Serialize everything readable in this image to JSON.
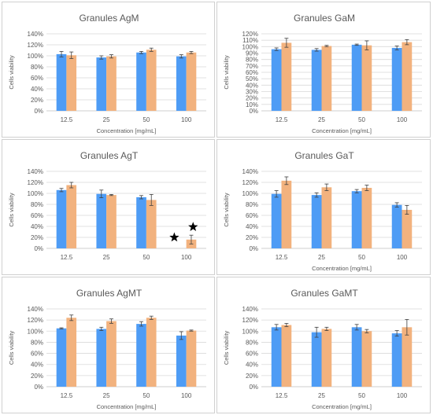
{
  "figure": {
    "colors": {
      "series_1": "#4e9cf5",
      "series_2": "#f2b27e",
      "marker": "#000000"
    }
  },
  "chart_data": [
    {
      "type": "bar",
      "title": "Granules AgM",
      "xlabel": "Concentration [mg/mL]",
      "ylabel": "Cells viability",
      "categories": [
        "12.5",
        "25",
        "50",
        "100"
      ],
      "ylim": [
        0,
        140
      ],
      "yticks": [
        "0%",
        "20%",
        "40%",
        "60%",
        "80%",
        "100%",
        "120%",
        "140%"
      ],
      "series": [
        {
          "values": [
            103,
            97,
            106,
            99
          ],
          "errors": [
            5,
            3,
            2,
            3
          ]
        },
        {
          "values": [
            101,
            99,
            111,
            106
          ],
          "errors": [
            6,
            3,
            3,
            2
          ]
        }
      ],
      "markers": []
    },
    {
      "type": "bar",
      "title": "Granules GaM",
      "xlabel": "Concentration [mg/mL]",
      "ylabel": "Cells viability",
      "categories": [
        "12.5",
        "25",
        "50",
        "100"
      ],
      "ylim": [
        0,
        120
      ],
      "yticks": [
        "0%",
        "10%",
        "20%",
        "30%",
        "40%",
        "50%",
        "60%",
        "70%",
        "80%",
        "90%",
        "100%",
        "110%",
        "120%"
      ],
      "series": [
        {
          "values": [
            96,
            95,
            103,
            98
          ],
          "errors": [
            2,
            2,
            1,
            3
          ]
        },
        {
          "values": [
            106,
            101,
            102,
            107
          ],
          "errors": [
            7,
            1,
            7,
            4
          ]
        }
      ],
      "markers": []
    },
    {
      "type": "bar",
      "title": "Granules AgT",
      "xlabel": "",
      "ylabel": "Cells viability",
      "categories": [
        "12.5",
        "25",
        "50",
        "100"
      ],
      "ylim": [
        0,
        140
      ],
      "yticks": [
        "0%",
        "20%",
        "40%",
        "60%",
        "80%",
        "100%",
        "120%",
        "140%"
      ],
      "series": [
        {
          "values": [
            106,
            99,
            93,
            0
          ],
          "errors": [
            3,
            7,
            3,
            0
          ]
        },
        {
          "values": [
            115,
            97,
            88,
            16
          ],
          "errors": [
            5,
            1,
            10,
            8
          ]
        }
      ],
      "markers": [
        {
          "category": "100",
          "y": 20,
          "offset": -0.3
        },
        {
          "category": "100",
          "y": 39,
          "offset": 0.17
        }
      ]
    },
    {
      "type": "bar",
      "title": "Granules GaT",
      "xlabel": "Concentration [mg/mL]",
      "ylabel": "Cells viability",
      "categories": [
        "12.5",
        "25",
        "50",
        "100"
      ],
      "ylim": [
        0,
        140
      ],
      "yticks": [
        "0%",
        "20%",
        "40%",
        "60%",
        "80%",
        "100%",
        "120%",
        "140%"
      ],
      "series": [
        {
          "values": [
            99,
            97,
            104,
            79
          ],
          "errors": [
            6,
            4,
            3,
            4
          ]
        },
        {
          "values": [
            123,
            111,
            110,
            70
          ],
          "errors": [
            7,
            6,
            5,
            8
          ]
        }
      ],
      "markers": []
    },
    {
      "type": "bar",
      "title": "Granules AgMT",
      "xlabel": "Concentration [mg/mL]",
      "ylabel": "Cells viability",
      "categories": [
        "12.5",
        "25",
        "50",
        "100"
      ],
      "ylim": [
        0,
        140
      ],
      "yticks": [
        "0%",
        "20%",
        "40%",
        "60%",
        "80%",
        "100%",
        "120%",
        "140%"
      ],
      "series": [
        {
          "values": [
            105,
            104,
            113,
            92
          ],
          "errors": [
            1,
            3,
            4,
            7
          ]
        },
        {
          "values": [
            124,
            118,
            124,
            101
          ],
          "errors": [
            5,
            4,
            3,
            1
          ]
        }
      ],
      "markers": []
    },
    {
      "type": "bar",
      "title": "Granules GaMT",
      "xlabel": "Concentration [mg/mL]",
      "ylabel": "Cells viability",
      "categories": [
        "12.5",
        "25",
        "50",
        "100"
      ],
      "ylim": [
        0,
        140
      ],
      "yticks": [
        "0%",
        "20%",
        "40%",
        "60%",
        "80%",
        "100%",
        "120%",
        "140%"
      ],
      "series": [
        {
          "values": [
            107,
            98,
            107,
            96
          ],
          "errors": [
            5,
            9,
            5,
            5
          ]
        },
        {
          "values": [
            111,
            104,
            100,
            107
          ],
          "errors": [
            3,
            3,
            3,
            14
          ]
        }
      ],
      "markers": []
    }
  ]
}
